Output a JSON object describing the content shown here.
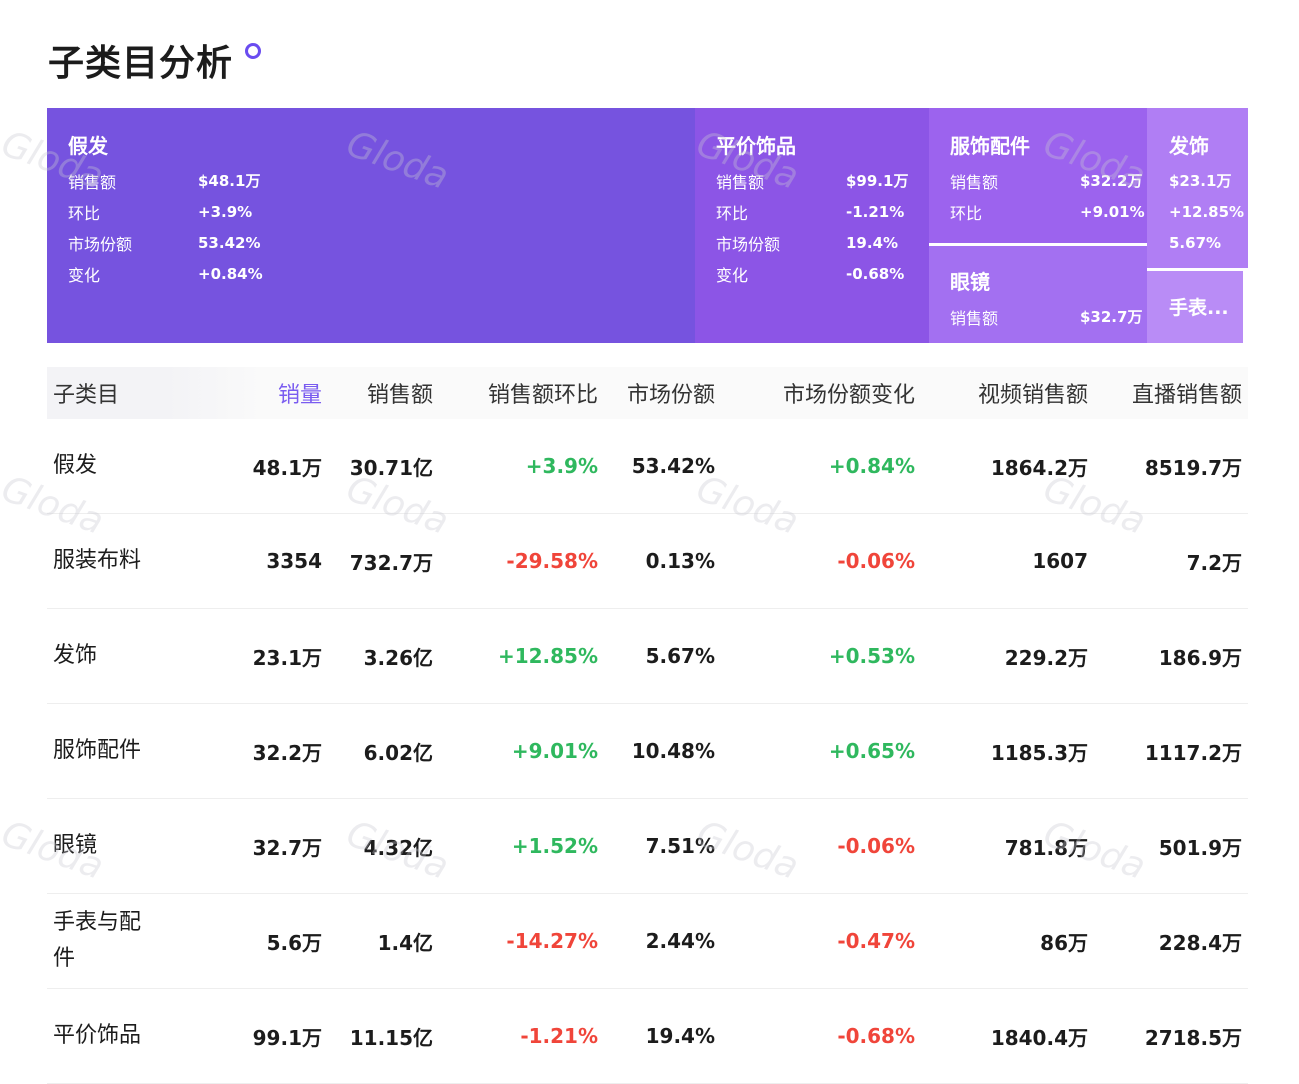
{
  "header": {
    "title": "子类目分析"
  },
  "treemap": {
    "tiles": [
      {
        "name": "假发",
        "rows": [
          {
            "k": "销售额",
            "v": "$48.1万"
          },
          {
            "k": "环比",
            "v": "+3.9%"
          },
          {
            "k": "市场份额",
            "v": "53.42%"
          },
          {
            "k": "变化",
            "v": "+0.84%"
          }
        ]
      },
      {
        "name": "平价饰品",
        "rows": [
          {
            "k": "销售额",
            "v": "$99.1万"
          },
          {
            "k": "环比",
            "v": "-1.21%"
          },
          {
            "k": "市场份额",
            "v": "19.4%"
          },
          {
            "k": "变化",
            "v": "-0.68%"
          }
        ]
      },
      {
        "name": "服饰配件",
        "rows": [
          {
            "k": "销售额",
            "v": "$32.2万"
          },
          {
            "k": "环比",
            "v": "+9.01%"
          }
        ]
      },
      {
        "name": "眼镜",
        "rows": [
          {
            "k": "销售额",
            "v": "$32.7万"
          }
        ]
      },
      {
        "name": "发饰",
        "rows": [
          {
            "v": "$23.1万"
          },
          {
            "v": "+12.85%"
          },
          {
            "v": "5.67%"
          }
        ]
      },
      {
        "name": "手表..."
      }
    ]
  },
  "table": {
    "headers": [
      "子类目",
      "销量",
      "销售额",
      "销售额环比",
      "市场份额",
      "市场份额变化",
      "视频销售额",
      "直播销售额"
    ],
    "rows": [
      [
        "假发",
        "48.1万",
        "30.71亿",
        "+3.9%",
        "53.42%",
        "+0.84%",
        "1864.2万",
        "8519.7万"
      ],
      [
        "服装布料",
        "3354",
        "732.7万",
        "-29.58%",
        "0.13%",
        "-0.06%",
        "1607",
        "7.2万"
      ],
      [
        "发饰",
        "23.1万",
        "3.26亿",
        "+12.85%",
        "5.67%",
        "+0.53%",
        "229.2万",
        "186.9万"
      ],
      [
        "服饰配件",
        "32.2万",
        "6.02亿",
        "+9.01%",
        "10.48%",
        "+0.65%",
        "1185.3万",
        "1117.2万"
      ],
      [
        "眼镜",
        "32.7万",
        "4.32亿",
        "+1.52%",
        "7.51%",
        "-0.06%",
        "781.8万",
        "501.9万"
      ],
      [
        "手表与配件",
        "5.6万",
        "1.4亿",
        "-14.27%",
        "2.44%",
        "-0.47%",
        "86万",
        "228.4万"
      ],
      [
        "平价饰品",
        "99.1万",
        "11.15亿",
        "-1.21%",
        "19.4%",
        "-0.68%",
        "1840.4万",
        "2718.5万"
      ]
    ]
  },
  "watermark": "Gloda"
}
